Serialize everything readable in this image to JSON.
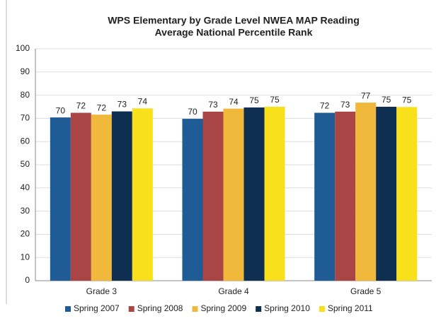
{
  "chart_data": {
    "type": "bar",
    "title": "WPS Elementary by Grade Level NWEA MAP Reading",
    "subtitle": "Average National Percentile Rank",
    "categories": [
      "Grade 3",
      "Grade 4",
      "Grade 5"
    ],
    "series": [
      {
        "name": "Spring 2007",
        "color": "#1f5b94",
        "values": [
          70.4,
          69.8,
          72.4
        ],
        "value_labels": [
          "70",
          "70",
          "72"
        ]
      },
      {
        "name": "Spring 2008",
        "color": "#a94545",
        "values": [
          72.4,
          72.9,
          72.9
        ],
        "value_labels": [
          "72",
          "73",
          "73"
        ]
      },
      {
        "name": "Spring 2009",
        "color": "#f0b93b",
        "values": [
          71.6,
          74.2,
          76.8
        ],
        "value_labels": [
          "72",
          "74",
          "77"
        ]
      },
      {
        "name": "Spring 2010",
        "color": "#0e2e52",
        "values": [
          73.0,
          74.7,
          75.0
        ],
        "value_labels": [
          "73",
          "75",
          "75"
        ]
      },
      {
        "name": "Spring 2011",
        "color": "#f8e01b",
        "values": [
          74.3,
          75.0,
          74.9
        ],
        "value_labels": [
          "74",
          "75",
          "75"
        ]
      }
    ],
    "ylim": [
      0,
      100
    ],
    "yticks": [
      0,
      10,
      20,
      30,
      40,
      50,
      60,
      70,
      80,
      90,
      100
    ],
    "grid": true,
    "legend": "bottom"
  }
}
